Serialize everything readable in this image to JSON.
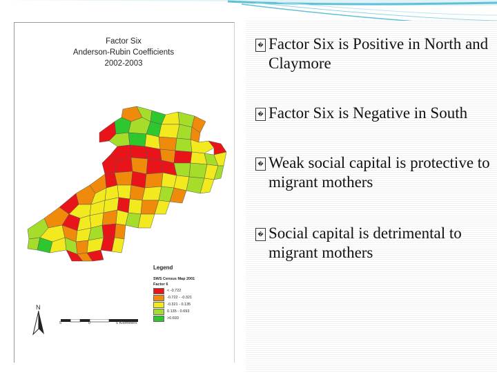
{
  "map": {
    "title_lines": [
      "Factor Six",
      "Anderson-Rubin Coefficients",
      "2002-2003"
    ],
    "legend": {
      "title": "Legend",
      "subtitle_1": "SWS Census Map 2001",
      "subtitle_2": "Factor 6",
      "items": [
        {
          "label": "< -0.722",
          "color": "#e8141a"
        },
        {
          "label": "-0.722 - -0.321",
          "color": "#f08a0a"
        },
        {
          "label": "-0.321 - 0.135",
          "color": "#f2ea1e"
        },
        {
          "label": "0.135 - 0.693",
          "color": "#a6dc2a"
        },
        {
          "label": ">0.693",
          "color": "#2ec82e"
        }
      ]
    },
    "north_label": "N",
    "scale_labels": [
      "5",
      "0",
      "5 Kilometers"
    ]
  },
  "bullets": [
    {
      "glyph": "�",
      "text": "Factor Six is Positive in North and Claymore"
    },
    {
      "glyph": "�",
      "text": "Factor Six is Negative in South"
    },
    {
      "glyph": "�",
      "text": "Weak social capital is protective to migrant mothers"
    },
    {
      "glyph": "�",
      "text": "Social capital is detrimental to migrant mothers"
    }
  ],
  "colors": {
    "swoosh": "#5fc0d8",
    "swoosh_light": "#b9e6f0"
  }
}
